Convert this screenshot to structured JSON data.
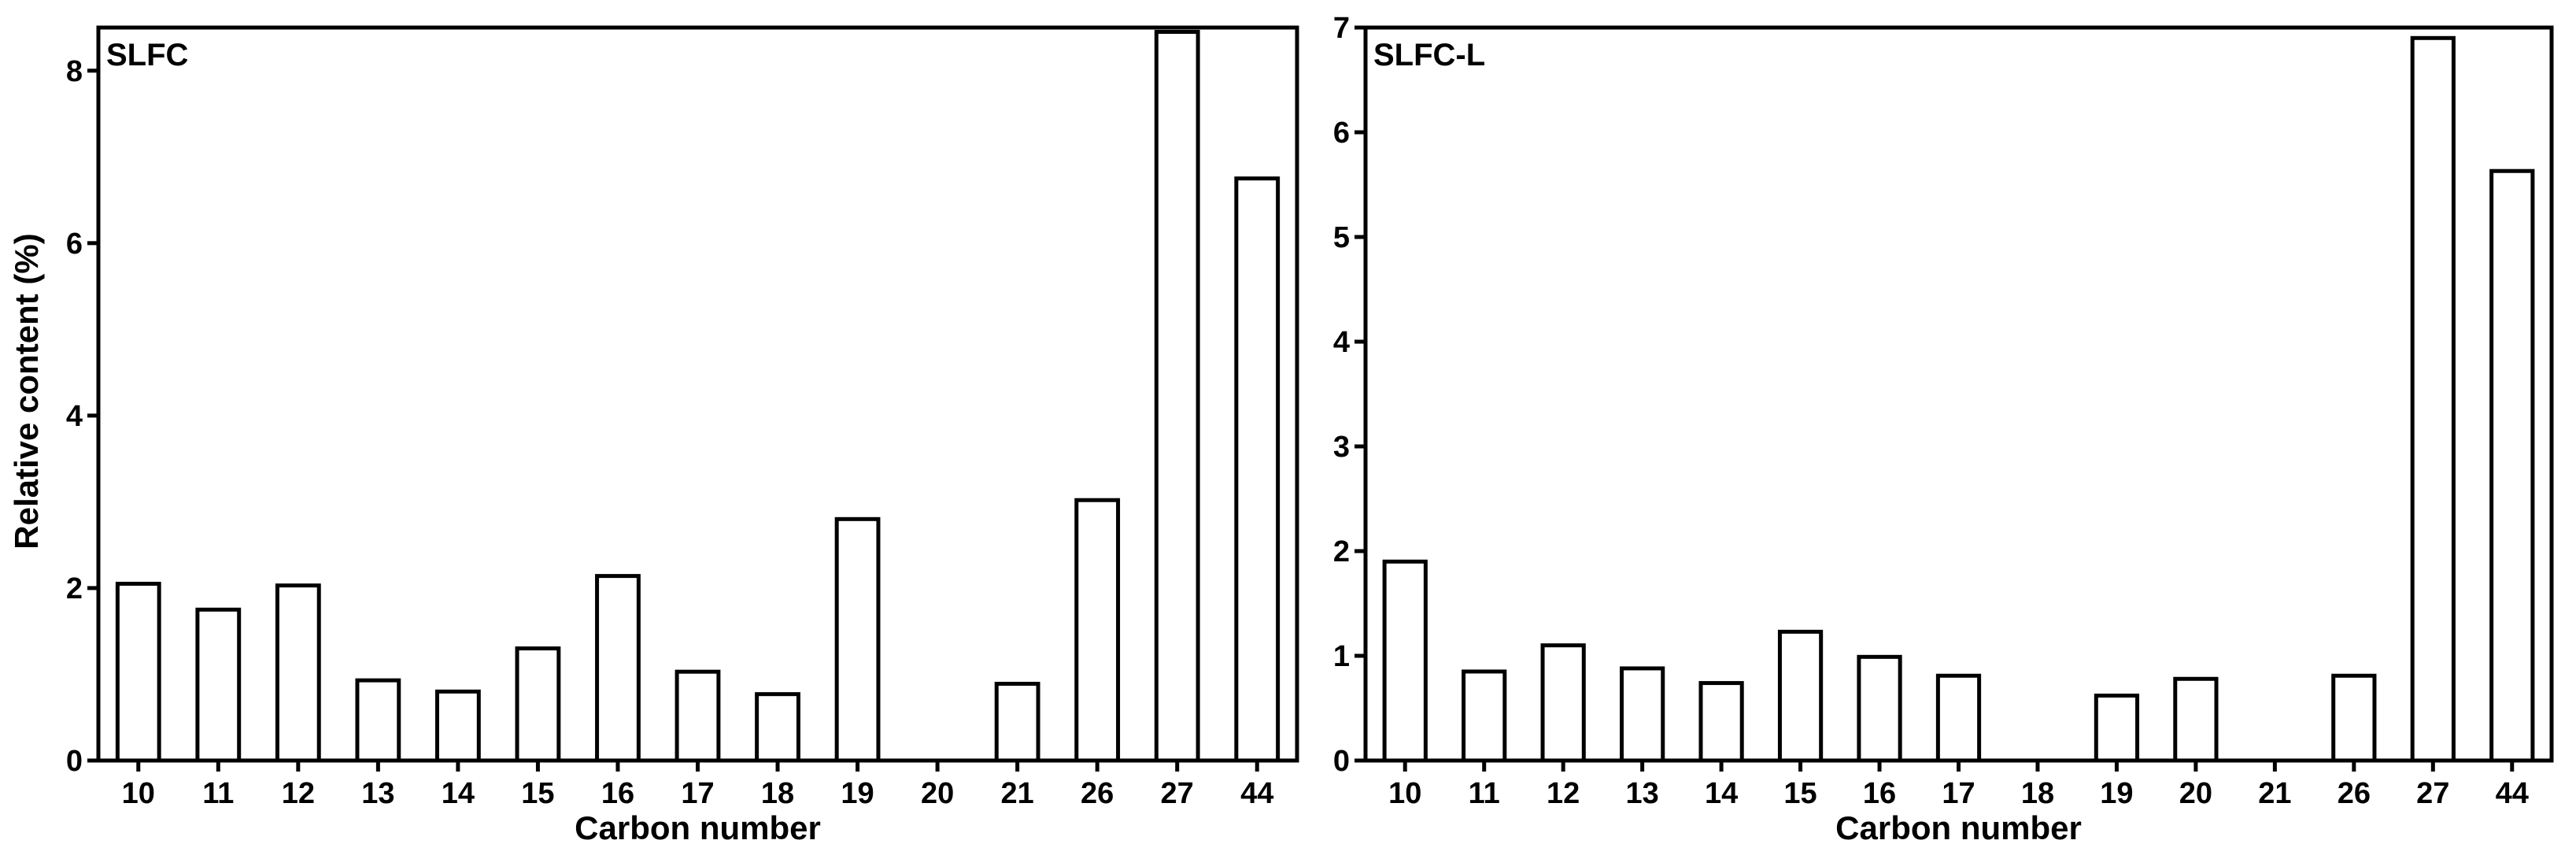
{
  "figure": {
    "ylabel_left": "Relative content (%)"
  },
  "chart_data": [
    {
      "type": "bar",
      "panel_label": "SLFC",
      "xlabel": "Carbon number",
      "ylabel": "Relative content (%)",
      "ylim": [
        0,
        8.5
      ],
      "yticks": [
        0,
        2,
        4,
        6,
        8
      ],
      "ytick_labels": [
        "0",
        "2",
        "4",
        "6",
        "8"
      ],
      "categories": [
        "10",
        "11",
        "12",
        "13",
        "14",
        "15",
        "16",
        "17",
        "18",
        "19",
        "20",
        "21",
        "26",
        "27",
        "44"
      ],
      "values": [
        2.05,
        1.75,
        2.03,
        0.93,
        0.8,
        1.3,
        2.14,
        1.03,
        0.77,
        2.8,
        0,
        0.89,
        3.02,
        8.45,
        6.75
      ],
      "bar_fill": "#ffffff",
      "bar_stroke": "#000000",
      "grid": false
    },
    {
      "type": "bar",
      "panel_label": "SLFC-L",
      "xlabel": "Carbon number",
      "ylabel": "",
      "ylim": [
        0,
        7
      ],
      "yticks": [
        0,
        1,
        2,
        3,
        4,
        5,
        6,
        7
      ],
      "ytick_labels": [
        "0",
        "1",
        "2",
        "3",
        "4",
        "5",
        "6",
        "7"
      ],
      "categories": [
        "10",
        "11",
        "12",
        "13",
        "14",
        "15",
        "16",
        "17",
        "18",
        "19",
        "20",
        "21",
        "26",
        "27",
        "44"
      ],
      "values": [
        1.9,
        0.85,
        1.1,
        0.88,
        0.74,
        1.23,
        0.99,
        0.81,
        0,
        0.62,
        0.78,
        0,
        0.81,
        6.9,
        5.63
      ],
      "bar_fill": "#ffffff",
      "bar_stroke": "#000000",
      "grid": false
    }
  ]
}
